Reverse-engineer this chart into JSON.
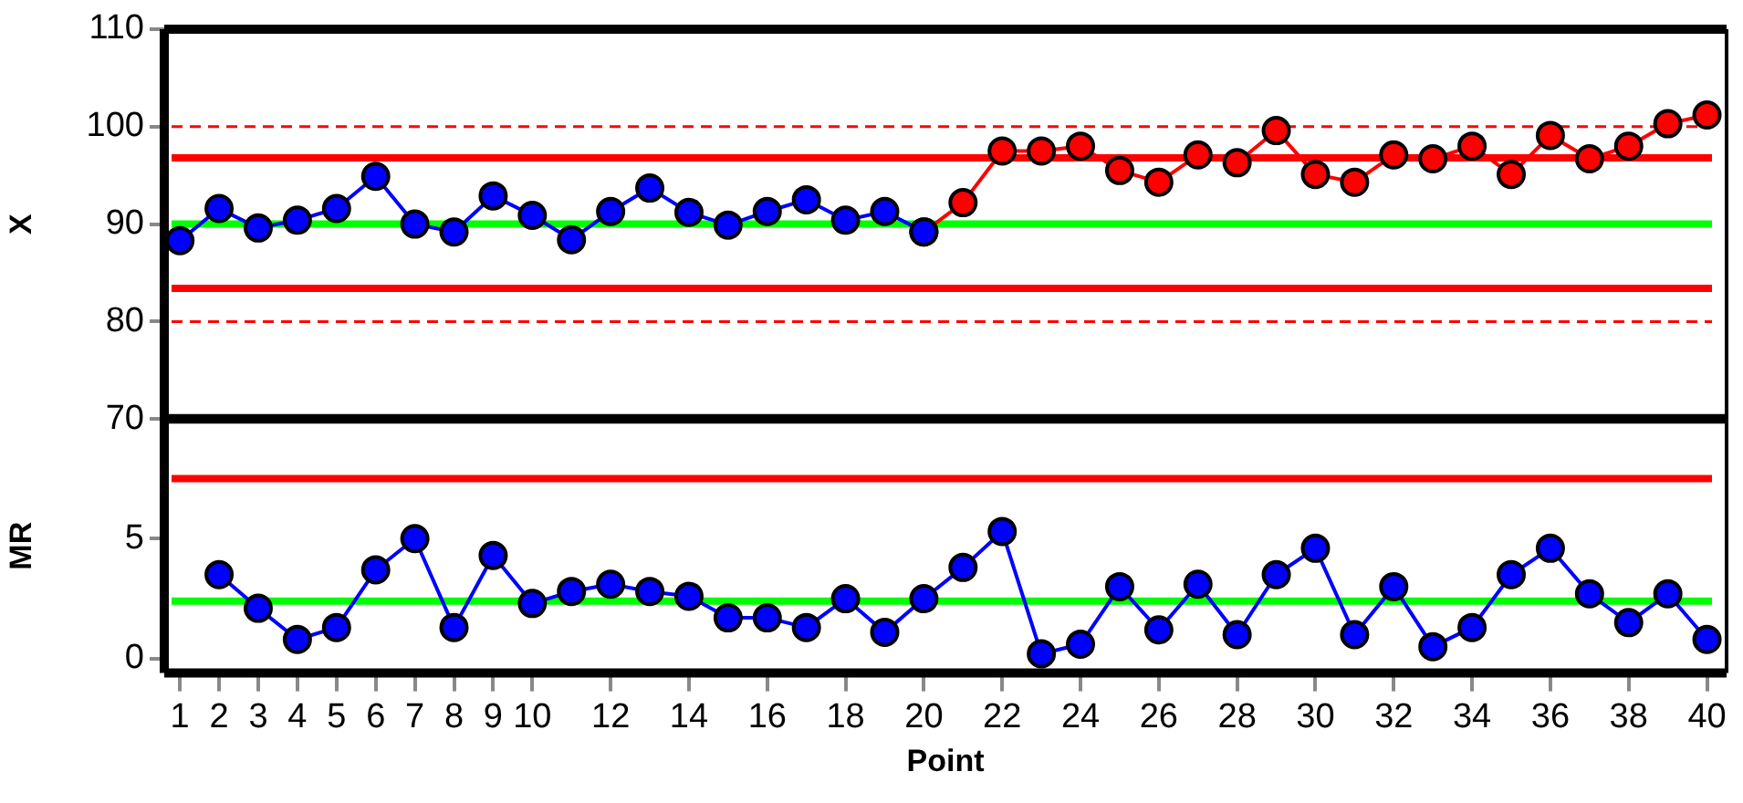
{
  "chart_data": [
    {
      "type": "line",
      "ylabel": "X",
      "xlim": [
        0.6,
        40.5
      ],
      "xticks": [
        1,
        2,
        3,
        4,
        5,
        6,
        7,
        8,
        9,
        10,
        12,
        14,
        16,
        18,
        20,
        22,
        24,
        26,
        28,
        30,
        32,
        34,
        36,
        38,
        40
      ],
      "ylim": [
        70,
        110
      ],
      "yticks": [
        70,
        80,
        90,
        100,
        110
      ],
      "tick_labels": "y",
      "grid": false,
      "legend": false,
      "marker": "circle",
      "line_style": "solid",
      "series": [
        {
          "color": "#0000ff",
          "x": [
            1,
            2,
            3,
            4,
            5,
            6,
            7,
            8,
            9,
            10,
            11,
            12,
            13,
            14,
            15,
            16,
            17,
            18,
            19,
            20
          ],
          "values": [
            88.3,
            91.6,
            89.6,
            90.4,
            91.6,
            94.9,
            90.0,
            89.2,
            92.9,
            90.9,
            88.4,
            91.3,
            93.7,
            91.2,
            89.9,
            91.3,
            92.5,
            90.4,
            91.3,
            89.2
          ]
        },
        {
          "color": "#ff0000",
          "x": [
            20,
            21,
            22,
            23,
            24,
            25,
            26,
            27,
            28,
            29,
            30,
            31,
            32,
            33,
            34,
            35,
            36,
            37,
            38,
            39,
            40
          ],
          "values": [
            89.2,
            92.2,
            97.5,
            97.5,
            98.0,
            95.5,
            94.3,
            97.1,
            96.3,
            99.6,
            95.1,
            94.3,
            97.1,
            96.7,
            98.0,
            95.1,
            99.1,
            96.7,
            98.0,
            100.3,
            101.2
          ]
        }
      ],
      "ref_lines": [
        {
          "axis": "y",
          "value": 90,
          "color": "#00ff00",
          "line_style": "solid"
        },
        {
          "axis": "y",
          "value": 96.8,
          "color": "#ff0000",
          "line_style": "solid"
        },
        {
          "axis": "y",
          "value": 83.4,
          "color": "#ff0000",
          "line_style": "solid"
        },
        {
          "axis": "y",
          "value": 100,
          "color": "#ff0000",
          "line_style": "dashed"
        },
        {
          "axis": "y",
          "value": 80,
          "color": "#ff0000",
          "line_style": "dashed"
        }
      ]
    },
    {
      "type": "line",
      "ylabel": "MR",
      "xlabel": "Point",
      "xlim": [
        0.6,
        40.5
      ],
      "xticks": [
        1,
        2,
        3,
        4,
        5,
        6,
        7,
        8,
        9,
        10,
        12,
        14,
        16,
        18,
        20,
        22,
        24,
        26,
        28,
        30,
        32,
        34,
        36,
        38,
        40
      ],
      "ylim": [
        -0.6,
        10
      ],
      "yticks": [
        0,
        5
      ],
      "grid": false,
      "legend": false,
      "marker": "circle",
      "line_style": "solid",
      "series": [
        {
          "color": "#0000ff",
          "x": [
            2,
            3,
            4,
            5,
            6,
            7,
            8,
            9,
            10,
            11,
            12,
            13,
            14,
            15,
            16,
            17,
            18,
            19,
            20,
            21,
            22,
            23,
            24,
            25,
            26,
            27,
            28,
            29,
            30,
            31,
            32,
            33,
            34,
            35,
            36,
            37,
            38,
            39,
            40
          ],
          "values": [
            3.5,
            2.1,
            0.8,
            1.3,
            3.7,
            5.0,
            1.3,
            4.3,
            2.3,
            2.8,
            3.1,
            2.8,
            2.6,
            1.7,
            1.7,
            1.3,
            2.5,
            1.1,
            2.5,
            3.8,
            5.3,
            0.2,
            0.6,
            3.0,
            1.2,
            3.1,
            1.0,
            3.5,
            4.6,
            1.0,
            3.0,
            0.5,
            1.3,
            3.5,
            4.6,
            2.7,
            1.5,
            2.7,
            0.8
          ]
        }
      ],
      "ref_lines": [
        {
          "axis": "y",
          "value": 7.5,
          "color": "#ff0000",
          "line_style": "solid"
        },
        {
          "axis": "y",
          "value": 2.4,
          "color": "#00ff00",
          "line_style": "solid"
        }
      ]
    }
  ]
}
